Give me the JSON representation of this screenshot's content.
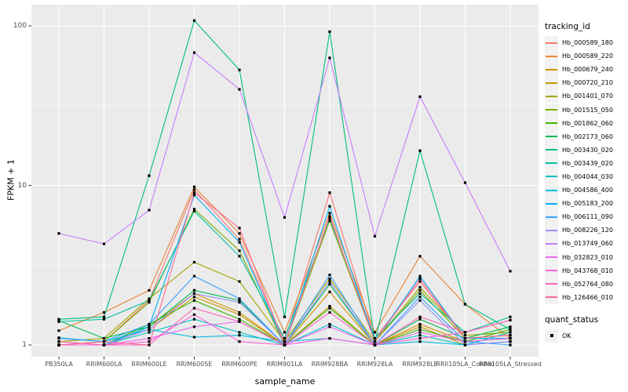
{
  "figure": {
    "background": "#FFFFFF",
    "panel_background": "#EBEBEB",
    "grid_color": "#FFFFFF",
    "tick_color": "#333333",
    "tick_label_color": "#4D4D4D",
    "point_color": "#000000"
  },
  "chart_data": {
    "type": "line",
    "title": "",
    "xlabel": "sample_name",
    "ylabel": "FPKM + 1",
    "y_scale": "log10",
    "y_ticks": [
      "1",
      "10",
      "100"
    ],
    "y_tick_values": [
      1,
      10,
      100
    ],
    "y_minor_gridline_values": [
      3.1623,
      31.623
    ],
    "ylim": [
      0.84,
      136
    ],
    "grid": true,
    "legend_position": "right",
    "point_marker": "filled-black-square",
    "categories": [
      "PB350LA",
      "RRIM600LA",
      "RRIM600LE",
      "RRIM600SE",
      "RRIM600PE",
      "RRIM901LA",
      "RRIM928BA",
      "RRIM928LA",
      "RRIM928LE",
      "RRII105LA_Control",
      "RRII105LA_Stressed"
    ],
    "series": [
      {
        "name": "Hb_000589_180",
        "color": "#F8766D",
        "values": [
          1.0,
          1.05,
          1.9,
          9.4,
          4.6,
          1.05,
          9.0,
          1.1,
          2.5,
          1.1,
          1.15
        ]
      },
      {
        "name": "Hb_000589_220",
        "color": "#EA8331",
        "values": [
          1.23,
          1.6,
          2.2,
          9.8,
          5.0,
          1.2,
          6.7,
          1.2,
          3.6,
          1.8,
          1.1
        ]
      },
      {
        "name": "Hb_000679_240",
        "color": "#D89000",
        "values": [
          1.0,
          1.0,
          1.3,
          2.1,
          1.6,
          1.0,
          2.15,
          1.0,
          1.35,
          1.05,
          1.1
        ]
      },
      {
        "name": "Hb_000720_210",
        "color": "#C09B00",
        "values": [
          1.0,
          1.0,
          1.25,
          2.0,
          1.55,
          1.0,
          1.75,
          1.0,
          1.3,
          1.0,
          1.05
        ]
      },
      {
        "name": "Hb_001401_070",
        "color": "#A3A500",
        "values": [
          1.05,
          1.1,
          1.95,
          3.3,
          2.5,
          1.05,
          2.6,
          1.05,
          2.3,
          1.15,
          1.2
        ]
      },
      {
        "name": "Hb_001515_050",
        "color": "#7CAE00",
        "values": [
          1.0,
          1.05,
          1.85,
          7.1,
          3.9,
          1.0,
          6.0,
          1.05,
          2.2,
          1.1,
          1.15
        ]
      },
      {
        "name": "Hb_001862_060",
        "color": "#39B600",
        "values": [
          1.0,
          1.0,
          1.35,
          1.9,
          1.45,
          1.0,
          1.7,
          1.0,
          1.25,
          1.05,
          1.25
        ]
      },
      {
        "name": "Hb_002173_060",
        "color": "#00BB4E",
        "values": [
          1.42,
          1.1,
          1.3,
          2.2,
          1.9,
          1.0,
          2.4,
          1.0,
          1.45,
          1.1,
          1.3
        ]
      },
      {
        "name": "Hb_003430_020",
        "color": "#00BF7D",
        "values": [
          1.45,
          1.5,
          11.5,
          108,
          53,
          1.5,
          92,
          1.05,
          16.5,
          1.8,
          1.25
        ]
      },
      {
        "name": "Hb_003439_020",
        "color": "#00C1A3",
        "values": [
          1.4,
          1.45,
          1.9,
          6.9,
          3.6,
          1.1,
          6.2,
          1.1,
          2.1,
          1.2,
          1.5
        ]
      },
      {
        "name": "Hb_004044_030",
        "color": "#00BFC4",
        "values": [
          1.0,
          1.0,
          1.2,
          1.45,
          1.2,
          1.0,
          1.35,
          1.0,
          1.15,
          1.0,
          1.2
        ]
      },
      {
        "name": "Hb_004586_400",
        "color": "#00BAE0",
        "values": [
          1.11,
          1.05,
          1.25,
          1.12,
          1.15,
          1.05,
          1.1,
          1.0,
          1.05,
          1.0,
          1.05
        ]
      },
      {
        "name": "Hb_005183_200",
        "color": "#00B0F6",
        "values": [
          1.0,
          1.0,
          1.3,
          8.7,
          4.4,
          1.0,
          7.4,
          1.05,
          2.7,
          1.1,
          1.1
        ]
      },
      {
        "name": "Hb_006111_090",
        "color": "#35A2FF",
        "values": [
          1.1,
          1.05,
          1.35,
          2.7,
          1.95,
          1.0,
          2.75,
          1.0,
          2.0,
          1.05,
          1.0
        ]
      },
      {
        "name": "Hb_008226_120",
        "color": "#9590FF",
        "values": [
          1.0,
          1.0,
          1.25,
          2.1,
          1.85,
          1.0,
          2.5,
          1.0,
          1.9,
          1.0,
          1.05
        ]
      },
      {
        "name": "Hb_013749_060",
        "color": "#C77CFF",
        "values": [
          5.0,
          4.3,
          7.0,
          68,
          40,
          6.3,
          63,
          4.8,
          36,
          10.4,
          2.9
        ]
      },
      {
        "name": "Hb_032823_010",
        "color": "#E76BF3",
        "values": [
          1.0,
          1.0,
          1.1,
          1.3,
          1.4,
          1.0,
          1.3,
          1.0,
          1.2,
          1.05,
          1.1
        ]
      },
      {
        "name": "Hb_043768_010",
        "color": "#FA62DB",
        "values": [
          1.0,
          1.0,
          1.05,
          1.55,
          1.05,
          1.0,
          1.1,
          1.0,
          1.1,
          1.2,
          1.43
        ]
      },
      {
        "name": "Hb_052764_080",
        "color": "#FF62BC",
        "values": [
          1.05,
          1.0,
          1.0,
          1.7,
          1.4,
          1.0,
          1.6,
          1.0,
          1.5,
          1.2,
          1.43
        ]
      },
      {
        "name": "Hb_126466_010",
        "color": "#FF6A98",
        "values": [
          1.0,
          1.05,
          1.0,
          9.0,
          5.4,
          1.0,
          6.4,
          1.05,
          2.6,
          1.1,
          1.15
        ]
      }
    ],
    "legend_tracking": {
      "title": "tracking_id"
    },
    "legend_quant": {
      "title": "quant_status",
      "items": [
        {
          "label": "OK",
          "marker": "black-square"
        }
      ]
    }
  }
}
